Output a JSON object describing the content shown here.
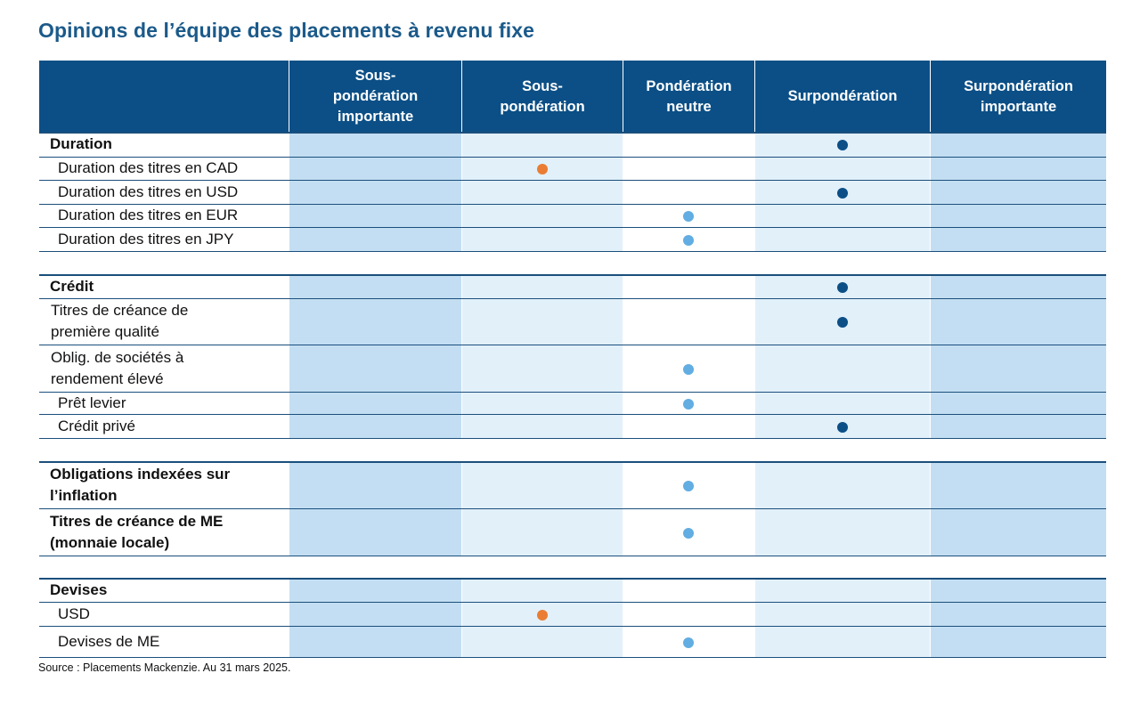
{
  "title": "Opinions de l’équipe des placements à revenu fixe",
  "columns": [
    "Sous-\npondération\nimportante",
    "Sous-\npondération",
    "Pondération\nneutre",
    "Surpondération",
    "Surpondération\nimportante"
  ],
  "colors": {
    "header_bg": "#0b4f86",
    "title": "#1b5a8a",
    "col_bands": [
      "#c3def2",
      "#e2f0fa",
      "#ffffff",
      "#e2f0fa",
      "#c3def2"
    ],
    "dot_orange": "#ea7d33",
    "dot_dark_blue": "#0b4f86",
    "dot_light_blue": "#62ade2"
  },
  "rows": [
    {
      "label": "Duration",
      "style": "main",
      "position": 3,
      "dot": "dark_blue"
    },
    {
      "label": "Duration des titres en CAD",
      "style": "sub",
      "position": 1,
      "dot": "orange"
    },
    {
      "label": "Duration des titres en USD",
      "style": "sub",
      "position": 3,
      "dot": "dark_blue"
    },
    {
      "label": "Duration des titres en EUR",
      "style": "sub",
      "position": 2,
      "dot": "light_blue"
    },
    {
      "label": "Duration des titres en JPY",
      "style": "sub",
      "position": 2,
      "dot": "light_blue"
    },
    {
      "label": "Crédit",
      "style": "main",
      "position": 3,
      "dot": "dark_blue"
    },
    {
      "label": "Titres de créance de\npremière qualité",
      "style": "sub2",
      "position": 3,
      "dot": "dark_blue"
    },
    {
      "label": "Oblig. de sociétés à\nrendement élevé",
      "style": "sub2",
      "position": 2,
      "dot": "light_blue"
    },
    {
      "label": "Prêt levier",
      "style": "sub",
      "position": 2,
      "dot": "light_blue"
    },
    {
      "label": "Crédit privé",
      "style": "sub",
      "position": 3,
      "dot": "dark_blue"
    },
    {
      "label": "Obligations indexées sur\nl’inflation",
      "style": "main",
      "position": 2,
      "dot": "light_blue"
    },
    {
      "label": "Titres de créance de ME\n(monnaie locale)",
      "style": "main",
      "position": 2,
      "dot": "light_blue"
    },
    {
      "label": "Devises",
      "style": "main",
      "position": null,
      "dot": null
    },
    {
      "label": "USD",
      "style": "sub",
      "position": 1,
      "dot": "orange"
    },
    {
      "label": "Devises de ME",
      "style": "sub",
      "position": 2,
      "dot": "light_blue"
    }
  ],
  "footer": "Source : Placements Mackenzie. Au 31 mars 2025."
}
